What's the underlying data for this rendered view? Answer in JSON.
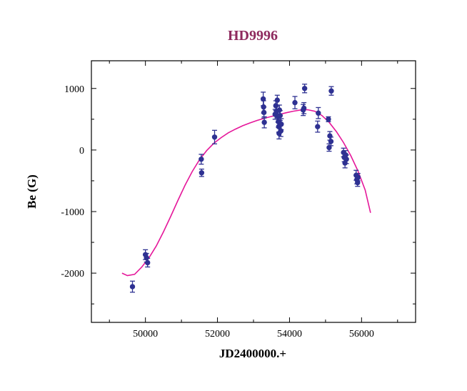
{
  "chart_data": {
    "type": "scatter",
    "title": "HD9996",
    "xlabel": "JD2400000.+",
    "ylabel": "Be (G)",
    "xlim": [
      48500,
      57500
    ],
    "ylim": [
      -2800,
      1450
    ],
    "x_ticks": [
      50000,
      52000,
      54000,
      56000
    ],
    "x_tick_labels": [
      "50000",
      "52000",
      "54000",
      "56000"
    ],
    "y_ticks": [
      1000,
      0,
      -1000,
      -2000
    ],
    "y_tick_labels": [
      "1000",
      "0",
      "-1000",
      "-2000"
    ],
    "grid": false,
    "colors": {
      "points": "#2e3192",
      "fit": "#e5179a",
      "title": "#8e2a5e"
    },
    "series": [
      {
        "type": "scatter",
        "points": [
          {
            "x": 49640,
            "y": -2220,
            "err": 90
          },
          {
            "x": 50000,
            "y": -1700,
            "err": 80
          },
          {
            "x": 50030,
            "y": -1750,
            "err": 70
          },
          {
            "x": 50060,
            "y": -1830,
            "err": 70
          },
          {
            "x": 51550,
            "y": -150,
            "err": 80
          },
          {
            "x": 51560,
            "y": -370,
            "err": 60
          },
          {
            "x": 51920,
            "y": 210,
            "err": 110
          },
          {
            "x": 53270,
            "y": 830,
            "err": 110
          },
          {
            "x": 53280,
            "y": 700,
            "err": 100
          },
          {
            "x": 53290,
            "y": 610,
            "err": 90
          },
          {
            "x": 53300,
            "y": 450,
            "err": 90
          },
          {
            "x": 53600,
            "y": 580,
            "err": 80
          },
          {
            "x": 53620,
            "y": 720,
            "err": 80
          },
          {
            "x": 53640,
            "y": 630,
            "err": 80
          },
          {
            "x": 53660,
            "y": 810,
            "err": 80
          },
          {
            "x": 53680,
            "y": 540,
            "err": 90
          },
          {
            "x": 53690,
            "y": 460,
            "err": 90
          },
          {
            "x": 53700,
            "y": 380,
            "err": 90
          },
          {
            "x": 53710,
            "y": 270,
            "err": 90
          },
          {
            "x": 53720,
            "y": 650,
            "err": 80
          },
          {
            "x": 53740,
            "y": 560,
            "err": 80
          },
          {
            "x": 53760,
            "y": 310,
            "err": 90
          },
          {
            "x": 53770,
            "y": 420,
            "err": 90
          },
          {
            "x": 54150,
            "y": 770,
            "err": 100
          },
          {
            "x": 54380,
            "y": 650,
            "err": 90
          },
          {
            "x": 54400,
            "y": 680,
            "err": 90
          },
          {
            "x": 54420,
            "y": 1000,
            "err": 70
          },
          {
            "x": 54780,
            "y": 380,
            "err": 90
          },
          {
            "x": 54800,
            "y": 600,
            "err": 90
          },
          {
            "x": 55080,
            "y": 500,
            "err": 40
          },
          {
            "x": 55100,
            "y": 40,
            "err": 60
          },
          {
            "x": 55120,
            "y": 230,
            "err": 70
          },
          {
            "x": 55150,
            "y": 140,
            "err": 70
          },
          {
            "x": 55160,
            "y": 960,
            "err": 70
          },
          {
            "x": 55500,
            "y": -40,
            "err": 70
          },
          {
            "x": 55520,
            "y": -120,
            "err": 70
          },
          {
            "x": 55540,
            "y": -210,
            "err": 80
          },
          {
            "x": 55560,
            "y": -80,
            "err": 70
          },
          {
            "x": 55580,
            "y": -150,
            "err": 70
          },
          {
            "x": 55850,
            "y": -410,
            "err": 80
          },
          {
            "x": 55870,
            "y": -480,
            "err": 70
          },
          {
            "x": 55890,
            "y": -530,
            "err": 60
          },
          {
            "x": 55900,
            "y": -440,
            "err": 60
          }
        ]
      },
      {
        "type": "line",
        "x": [
          49350,
          49500,
          49700,
          49900,
          50100,
          50300,
          50500,
          50700,
          50900,
          51100,
          51300,
          51500,
          51700,
          51900,
          52100,
          52300,
          52500,
          52700,
          52900,
          53100,
          53300,
          53500,
          53700,
          53900,
          54100,
          54300,
          54500,
          54700,
          54900,
          55100,
          55300,
          55500,
          55700,
          55900,
          56100,
          56250
        ],
        "y": [
          -2000,
          -2040,
          -2020,
          -1900,
          -1750,
          -1560,
          -1330,
          -1080,
          -820,
          -570,
          -350,
          -160,
          -10,
          110,
          200,
          280,
          340,
          395,
          440,
          480,
          515,
          545,
          575,
          605,
          630,
          650,
          655,
          630,
          560,
          450,
          300,
          120,
          -90,
          -340,
          -650,
          -1020
        ]
      }
    ]
  }
}
